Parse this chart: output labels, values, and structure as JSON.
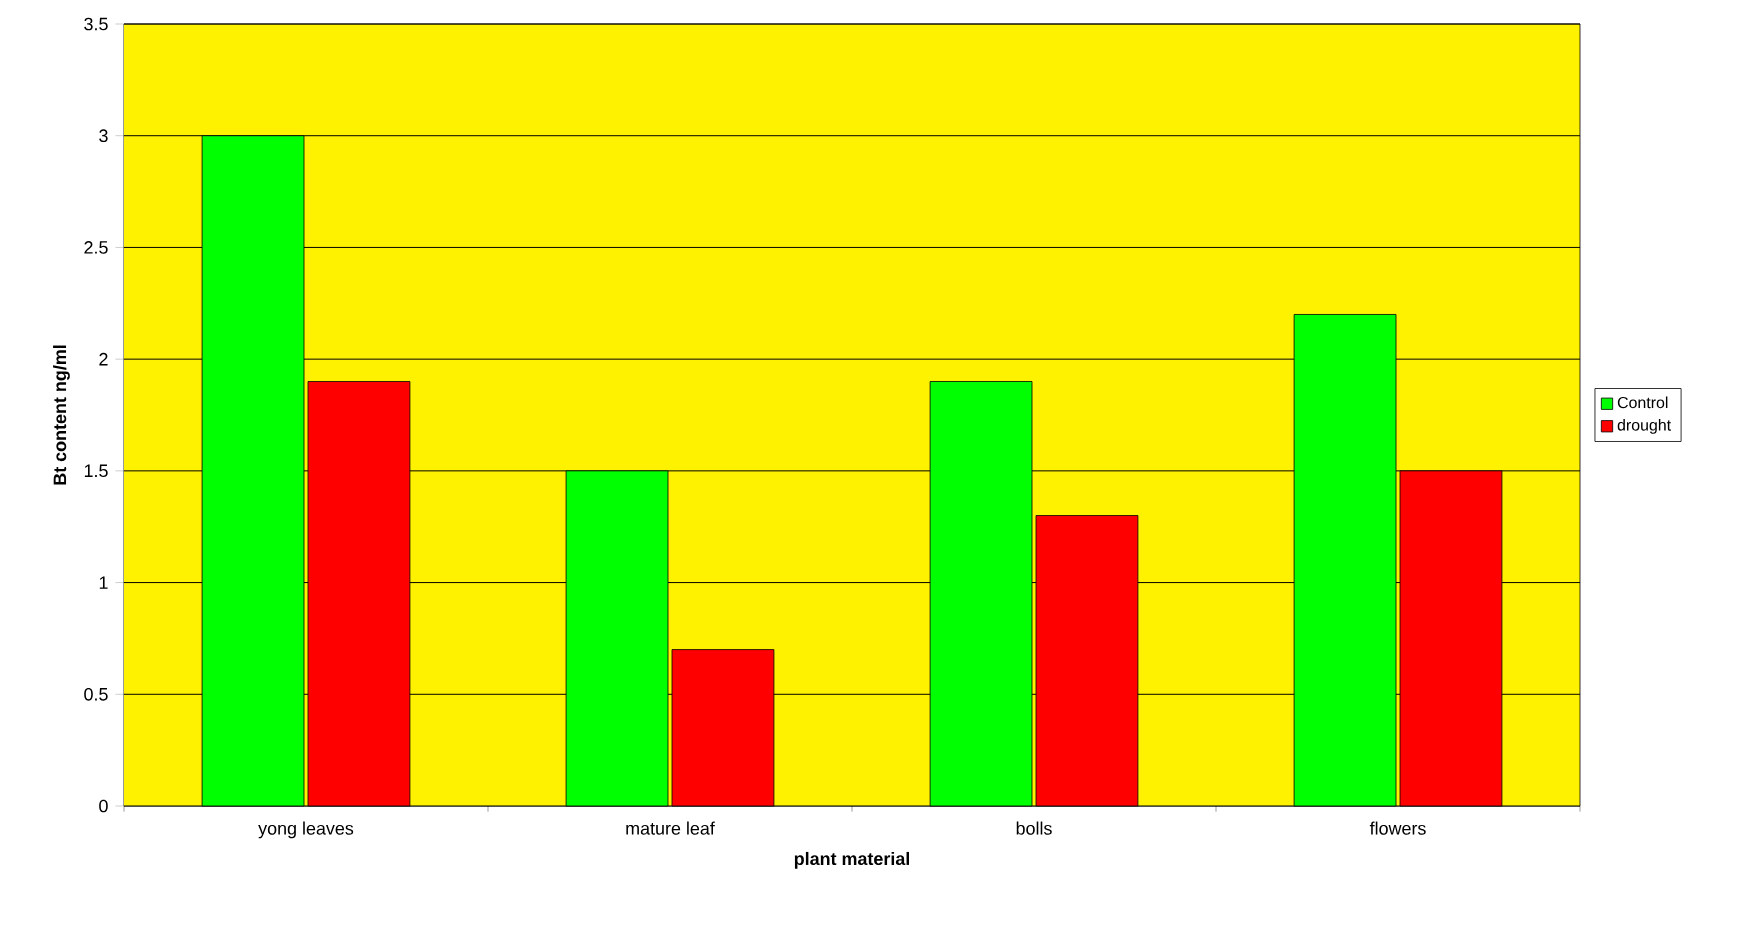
{
  "chart_data": {
    "type": "bar",
    "xlabel": "plant material",
    "ylabel": "Bt content ng/ml",
    "categories": [
      "yong leaves",
      "mature leaf",
      "bolls",
      "flowers"
    ],
    "series": [
      {
        "name": "Control",
        "color": "#00ff00",
        "values": [
          3,
          1.5,
          1.9,
          2.2
        ]
      },
      {
        "name": "drought",
        "color": "#ff0000",
        "values": [
          1.9,
          0.7,
          1.3,
          1.5
        ]
      }
    ],
    "ylim": [
      0,
      3.5
    ],
    "yticks": [
      0,
      0.5,
      1,
      1.5,
      2,
      2.5,
      3,
      3.5
    ],
    "grid": "y",
    "legend": "right"
  }
}
